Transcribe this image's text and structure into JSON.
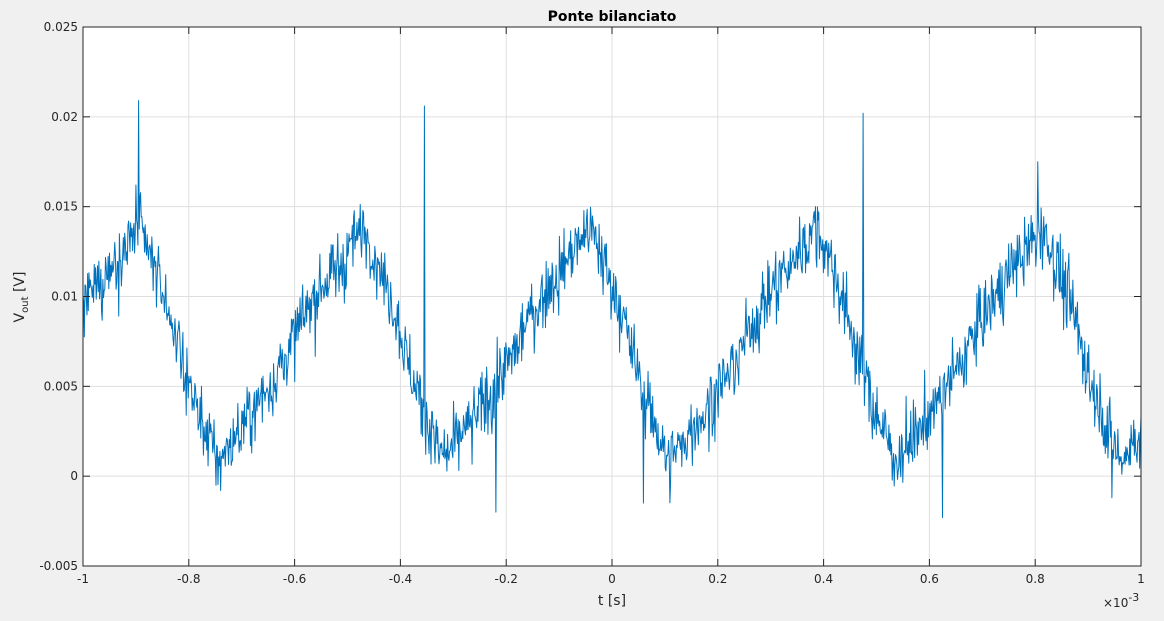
{
  "chart_data": {
    "type": "line",
    "title": "Ponte bilanciato",
    "xlabel": "t [s]",
    "ylabel": {
      "base": "V",
      "sub": "out",
      "unit": " [V]"
    },
    "xlim": [
      -0.001,
      0.001
    ],
    "ylim": [
      -0.005,
      0.025
    ],
    "x_multiplier": {
      "base": "×10",
      "exp": "-3"
    },
    "x_tick_labels": [
      "-1",
      "-0.8",
      "-0.6",
      "-0.4",
      "-0.2",
      "0",
      "0.2",
      "0.4",
      "0.6",
      "0.8",
      "1"
    ],
    "y_tick_labels": [
      "-0.005",
      "0",
      "0.005",
      "0.01",
      "0.015",
      "0.02",
      "0.025"
    ],
    "grid": true,
    "series": [
      {
        "color": "#0072bd",
        "period_s": 0.000427,
        "offset_V": 0.0073,
        "amplitude_V": 0.0065,
        "peak_times_s": [
          -0.000895,
          -0.000355,
          0.000475,
          0.000805
        ],
        "peak_values_V": [
          0.0209,
          0.0206,
          0.0202,
          0.0175
        ],
        "trough_times_s": [
          -0.00074,
          -0.00022,
          6e-05,
          0.000625,
          0.000945
        ],
        "trough_values_V": [
          -0.0008,
          -0.002,
          -0.0015,
          -0.0023,
          -0.0012
        ],
        "noise_std_V": 0.0022,
        "samples": 1600
      }
    ]
  }
}
